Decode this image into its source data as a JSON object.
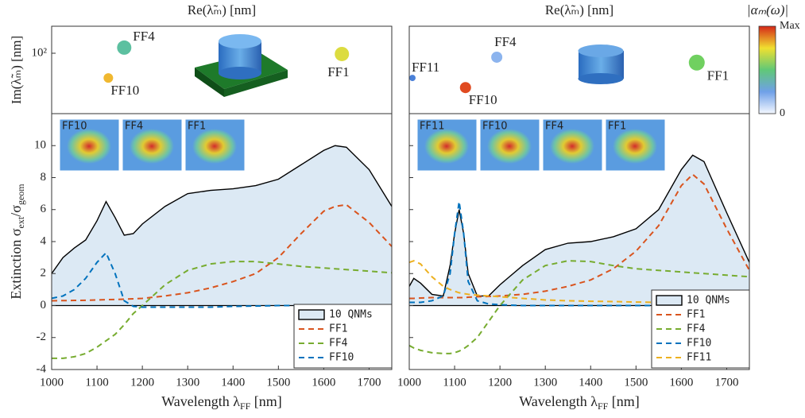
{
  "chart_data": [
    {
      "type": "scatter",
      "title": "Re(λ̃ₘ) [nm]",
      "ylabel": "Im(λ̃ₘ) [nm]",
      "log_y": true,
      "labels": [
        "FF4",
        "FF10",
        "FF1"
      ],
      "x": [
        1160,
        1125,
        1640
      ],
      "values": [
        124,
        39,
        97
      ],
      "sizes": [
        9,
        6,
        9
      ],
      "colors": [
        "#5cc0a0",
        "#f0b830",
        "#dcdc40"
      ],
      "xlim": [
        1000,
        1750
      ],
      "ylim": [
        10,
        280
      ],
      "yticks": [
        {
          "value": 100,
          "label": "10²"
        }
      ]
    },
    {
      "type": "line",
      "xlabel": [
        "Wavelength λ",
        "FF",
        " [nm]"
      ],
      "ylabel": [
        "Extinction σ",
        "ext",
        "/σ",
        "geom"
      ],
      "insets": [
        "FF10",
        "FF4",
        "FF1"
      ],
      "x": [
        1000,
        1025,
        1050,
        1075,
        1100,
        1120,
        1140,
        1160,
        1180,
        1200,
        1250,
        1300,
        1350,
        1400,
        1450,
        1500,
        1550,
        1600,
        1625,
        1650,
        1700,
        1750
      ],
      "series": [
        {
          "name": "10 QNMs",
          "color": "#000000",
          "fill": "#dce9f4",
          "style": "solid",
          "values": [
            2.0,
            3.0,
            3.6,
            4.1,
            5.3,
            6.5,
            5.5,
            4.4,
            4.5,
            5.1,
            6.2,
            7.0,
            7.2,
            7.3,
            7.5,
            7.9,
            8.8,
            9.7,
            10.0,
            9.9,
            8.5,
            6.2
          ]
        },
        {
          "name": "FF1",
          "color": "#d9541e",
          "style": "dashed",
          "values": [
            0.3,
            0.31,
            0.32,
            0.33,
            0.35,
            0.37,
            0.38,
            0.4,
            0.42,
            0.45,
            0.6,
            0.8,
            1.1,
            1.5,
            2.0,
            3.0,
            4.5,
            5.9,
            6.2,
            6.3,
            5.2,
            3.7
          ]
        },
        {
          "name": "FF4",
          "color": "#77ac30",
          "style": "dashed",
          "values": [
            -3.3,
            -3.3,
            -3.2,
            -3.0,
            -2.6,
            -2.2,
            -1.8,
            -1.2,
            -0.5,
            0.0,
            1.3,
            2.2,
            2.6,
            2.75,
            2.75,
            2.6,
            2.45,
            2.35,
            2.3,
            2.25,
            2.15,
            2.05
          ]
        },
        {
          "name": "FF10",
          "color": "#0072bd",
          "style": "dashed",
          "values": [
            0.45,
            0.6,
            1.0,
            1.7,
            2.7,
            3.3,
            2.0,
            0.3,
            -0.05,
            -0.1,
            -0.1,
            -0.1,
            -0.1,
            -0.05,
            -0.03,
            0,
            0,
            0,
            0,
            0,
            0,
            0
          ]
        }
      ],
      "xlim": [
        1000,
        1750
      ],
      "ylim": [
        -4,
        12
      ],
      "xticks": [
        1000,
        1100,
        1200,
        1300,
        1400,
        1500,
        1600,
        1700
      ],
      "yticks": [
        -4,
        -2,
        0,
        2,
        4,
        6,
        8,
        10
      ],
      "legend": "lower right"
    },
    {
      "type": "scatter",
      "title": "Re(λ̃ₘ) [nm]",
      "log_y": true,
      "labels": [
        "FF4",
        "FF11",
        "FF10",
        "FF1"
      ],
      "x": [
        1193,
        1007,
        1124,
        1634
      ],
      "values": [
        86,
        39,
        27,
        70
      ],
      "sizes": [
        7,
        4,
        7,
        10
      ],
      "colors": [
        "#8cb4ee",
        "#4a80d8",
        "#e04a20",
        "#70d060"
      ],
      "xlim": [
        1000,
        1750
      ],
      "ylim": [
        10,
        280
      ]
    },
    {
      "type": "line",
      "xlabel": [
        "Wavelength λ",
        "FF",
        " [nm]"
      ],
      "insets": [
        "FF11",
        "FF10",
        "FF4",
        "FF1"
      ],
      "x": [
        1000,
        1010,
        1025,
        1050,
        1075,
        1090,
        1100,
        1110,
        1120,
        1130,
        1150,
        1175,
        1200,
        1250,
        1300,
        1350,
        1400,
        1450,
        1500,
        1550,
        1600,
        1625,
        1650,
        1700,
        1750
      ],
      "series": [
        {
          "name": "10 QNMs",
          "color": "#000000",
          "fill": "#dce9f4",
          "style": "solid",
          "values": [
            1.2,
            1.7,
            1.4,
            0.7,
            0.6,
            2.5,
            4.5,
            6.0,
            4.5,
            2.0,
            0.6,
            0.6,
            1.3,
            2.5,
            3.5,
            3.9,
            4.0,
            4.3,
            4.8,
            6.0,
            8.5,
            9.4,
            9.0,
            5.8,
            2.7
          ]
        },
        {
          "name": "FF1",
          "color": "#d9541e",
          "style": "dashed",
          "values": [
            0.45,
            0.45,
            0.47,
            0.5,
            0.5,
            0.5,
            0.5,
            0.5,
            0.5,
            0.52,
            0.55,
            0.57,
            0.6,
            0.7,
            0.9,
            1.2,
            1.6,
            2.3,
            3.4,
            5.0,
            7.5,
            8.2,
            7.6,
            4.8,
            2.2
          ]
        },
        {
          "name": "FF4",
          "color": "#77ac30",
          "style": "dashed",
          "values": [
            -2.5,
            -2.65,
            -2.8,
            -2.95,
            -3.0,
            -3.0,
            -2.95,
            -2.85,
            -2.7,
            -2.5,
            -2.0,
            -1.0,
            0.0,
            1.6,
            2.5,
            2.8,
            2.75,
            2.5,
            2.3,
            2.2,
            2.1,
            2.05,
            2.0,
            1.9,
            1.8
          ]
        },
        {
          "name": "FF10",
          "color": "#0072bd",
          "style": "dashed",
          "values": [
            0.2,
            0.2,
            0.2,
            0.3,
            0.6,
            2.0,
            4.5,
            6.5,
            4.5,
            1.5,
            0.3,
            0.1,
            0.05,
            0,
            0,
            0,
            0,
            0,
            0,
            0,
            0,
            0,
            0,
            0,
            0
          ]
        },
        {
          "name": "FF11",
          "color": "#edb120",
          "style": "dashed",
          "values": [
            2.7,
            2.8,
            2.6,
            1.8,
            1.2,
            1.0,
            0.9,
            0.8,
            0.75,
            0.7,
            0.65,
            0.6,
            0.55,
            0.45,
            0.35,
            0.3,
            0.27,
            0.25,
            0.22,
            0.2,
            0.18,
            0.17,
            0.16,
            0.15,
            0.13
          ]
        }
      ],
      "xlim": [
        1000,
        1750
      ],
      "ylim": [
        -4,
        12
      ],
      "xticks": [
        1000,
        1100,
        1200,
        1300,
        1400,
        1500,
        1600,
        1700
      ],
      "yticks": [
        -4,
        -2,
        0,
        2,
        4,
        6,
        8,
        10
      ],
      "legend": "lower right"
    }
  ],
  "colorbar": {
    "title": "|αₘ(ω)|",
    "high": "Max",
    "low": 0
  }
}
